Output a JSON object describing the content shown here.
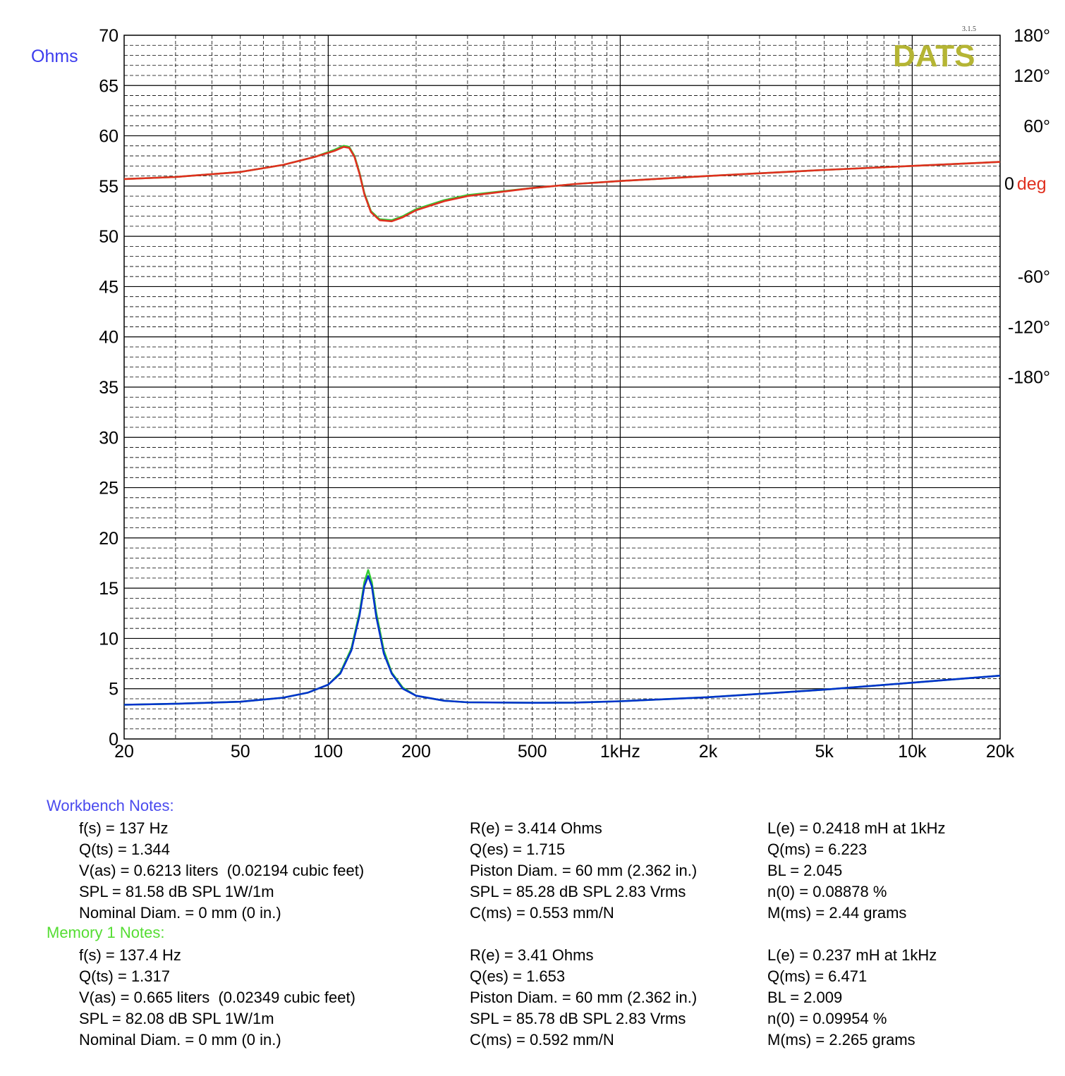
{
  "logo_text": "DATS",
  "version": "3.1.5",
  "colors": {
    "impedance_current": "#0033cc",
    "memory": "#33cc33",
    "phase_current": "#e03020",
    "logo": "#b5b534",
    "workbench_heading": "#4a4aee",
    "memory_heading": "#55dd33",
    "ohms_label": "#3b3bee",
    "deg_label": "#e03020",
    "grid_major": "#000000",
    "grid_minor": "#000000"
  },
  "chart_data": {
    "type": "line",
    "xscale": "log",
    "xlim": [
      20,
      20000
    ],
    "ylim_left": [
      0,
      70
    ],
    "ylim_right_deg": [
      -180,
      180
    ],
    "ylabel_left": "Ohms",
    "ylabel_right_value": "0",
    "ylabel_right_unit": "deg",
    "grid": true,
    "x_ticks": [
      {
        "value": 20,
        "label": "20"
      },
      {
        "value": 50,
        "label": "50"
      },
      {
        "value": 100,
        "label": "100"
      },
      {
        "value": 200,
        "label": "200"
      },
      {
        "value": 500,
        "label": "500"
      },
      {
        "value": 1000,
        "label": "1kHz"
      },
      {
        "value": 2000,
        "label": "2k"
      },
      {
        "value": 5000,
        "label": "5k"
      },
      {
        "value": 10000,
        "label": "10k"
      },
      {
        "value": 20000,
        "label": "20k"
      }
    ],
    "y_ticks_left": [
      "0",
      "5",
      "10",
      "15",
      "20",
      "25",
      "30",
      "35",
      "40",
      "45",
      "50",
      "55",
      "60",
      "65",
      "70"
    ],
    "y_ticks_right": [
      {
        "ohm_value": 70,
        "label": "180°"
      },
      {
        "ohm_value": 66,
        "label": "120°"
      },
      {
        "ohm_value": 61,
        "label": "60°"
      },
      {
        "ohm_value": 46,
        "label": "-60°"
      },
      {
        "ohm_value": 41,
        "label": "-120°"
      },
      {
        "ohm_value": 36,
        "label": "-180°"
      }
    ],
    "series": [
      {
        "key": "memory_impedance",
        "color": "#33cc33",
        "points": [
          [
            20,
            3.4
          ],
          [
            30,
            3.5
          ],
          [
            50,
            3.7
          ],
          [
            70,
            4.1
          ],
          [
            85,
            4.6
          ],
          [
            100,
            5.4
          ],
          [
            110,
            6.6
          ],
          [
            120,
            9.0
          ],
          [
            128,
            12.6
          ],
          [
            133,
            15.6
          ],
          [
            137,
            16.8
          ],
          [
            141,
            15.6
          ],
          [
            146,
            12.6
          ],
          [
            155,
            8.8
          ],
          [
            165,
            6.6
          ],
          [
            180,
            5.1
          ],
          [
            200,
            4.3
          ],
          [
            250,
            3.8
          ],
          [
            300,
            3.65
          ],
          [
            500,
            3.6
          ],
          [
            700,
            3.62
          ],
          [
            1000,
            3.75
          ],
          [
            2000,
            4.15
          ],
          [
            5000,
            4.9
          ],
          [
            10000,
            5.6
          ],
          [
            20000,
            6.3
          ]
        ]
      },
      {
        "key": "current_impedance",
        "color": "#0033cc",
        "points": [
          [
            20,
            3.4
          ],
          [
            30,
            3.5
          ],
          [
            50,
            3.7
          ],
          [
            70,
            4.1
          ],
          [
            85,
            4.6
          ],
          [
            100,
            5.4
          ],
          [
            110,
            6.5
          ],
          [
            120,
            8.8
          ],
          [
            128,
            12.3
          ],
          [
            133,
            15.2
          ],
          [
            137,
            16.2
          ],
          [
            141,
            15.2
          ],
          [
            146,
            12.2
          ],
          [
            155,
            8.5
          ],
          [
            165,
            6.5
          ],
          [
            180,
            5.0
          ],
          [
            200,
            4.3
          ],
          [
            250,
            3.8
          ],
          [
            300,
            3.65
          ],
          [
            500,
            3.6
          ],
          [
            700,
            3.62
          ],
          [
            1000,
            3.75
          ],
          [
            2000,
            4.15
          ],
          [
            5000,
            4.9
          ],
          [
            10000,
            5.6
          ],
          [
            20000,
            6.3
          ]
        ]
      },
      {
        "key": "memory_phase",
        "color": "#33cc33",
        "points": [
          [
            20,
            55.7
          ],
          [
            30,
            55.9
          ],
          [
            50,
            56.4
          ],
          [
            70,
            57.1
          ],
          [
            90,
            57.9
          ],
          [
            105,
            58.6
          ],
          [
            113,
            59.0
          ],
          [
            118,
            58.9
          ],
          [
            123,
            58.0
          ],
          [
            128,
            56.3
          ],
          [
            133,
            54.3
          ],
          [
            140,
            52.5
          ],
          [
            150,
            51.7
          ],
          [
            165,
            51.6
          ],
          [
            180,
            52.0
          ],
          [
            200,
            52.7
          ],
          [
            250,
            53.6
          ],
          [
            300,
            54.1
          ],
          [
            500,
            54.8
          ],
          [
            700,
            55.2
          ],
          [
            1000,
            55.5
          ],
          [
            2000,
            56.0
          ],
          [
            5000,
            56.6
          ],
          [
            10000,
            57.0
          ],
          [
            20000,
            57.4
          ]
        ]
      },
      {
        "key": "current_phase",
        "color": "#e03020",
        "points": [
          [
            20,
            55.7
          ],
          [
            30,
            55.9
          ],
          [
            50,
            56.4
          ],
          [
            70,
            57.1
          ],
          [
            90,
            57.9
          ],
          [
            105,
            58.5
          ],
          [
            113,
            58.9
          ],
          [
            118,
            58.8
          ],
          [
            123,
            57.9
          ],
          [
            128,
            56.2
          ],
          [
            133,
            54.2
          ],
          [
            140,
            52.4
          ],
          [
            150,
            51.6
          ],
          [
            165,
            51.5
          ],
          [
            180,
            51.9
          ],
          [
            200,
            52.6
          ],
          [
            250,
            53.5
          ],
          [
            300,
            54.0
          ],
          [
            500,
            54.8
          ],
          [
            700,
            55.2
          ],
          [
            1000,
            55.5
          ],
          [
            2000,
            56.0
          ],
          [
            5000,
            56.6
          ],
          [
            10000,
            57.0
          ],
          [
            20000,
            57.4
          ]
        ]
      }
    ]
  },
  "notes": {
    "workbench": {
      "heading": "Workbench Notes:",
      "col1": [
        "f(s) = 137 Hz",
        "Q(ts) = 1.344",
        "V(as) = 0.6213 liters  (0.02194 cubic feet)",
        "SPL = 81.58 dB SPL 1W/1m",
        "Nominal Diam. = 0 mm (0 in.)"
      ],
      "col2": [
        "R(e) = 3.414 Ohms",
        "Q(es) = 1.715",
        "Piston Diam. = 60 mm (2.362 in.)",
        "SPL = 85.28 dB SPL 2.83 Vrms",
        "C(ms) = 0.553 mm/N"
      ],
      "col3": [
        "L(e) = 0.2418 mH at 1kHz",
        "Q(ms) = 6.223",
        "BL = 2.045",
        "n(0) = 0.08878 %",
        "M(ms) = 2.44 grams"
      ]
    },
    "memory": {
      "heading": "Memory 1 Notes:",
      "col1": [
        "f(s) = 137.4 Hz",
        "Q(ts) = 1.317",
        "V(as) = 0.665 liters  (0.02349 cubic feet)",
        "SPL = 82.08 dB SPL 1W/1m",
        "Nominal Diam. = 0 mm (0 in.)"
      ],
      "col2": [
        "R(e) = 3.41 Ohms",
        "Q(es) = 1.653",
        "Piston Diam. = 60 mm (2.362 in.)",
        "SPL = 85.78 dB SPL 2.83 Vrms",
        "C(ms) = 0.592 mm/N"
      ],
      "col3": [
        "L(e) = 0.237 mH at 1kHz",
        "Q(ms) = 6.471",
        "BL = 2.009",
        "n(0) = 0.09954 %",
        "M(ms) = 2.265 grams"
      ]
    }
  }
}
